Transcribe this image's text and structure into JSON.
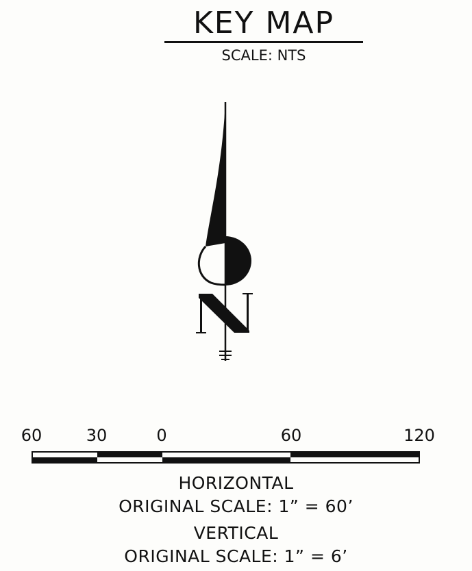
{
  "header": {
    "title": "KEY MAP",
    "subtitle": "SCALE: NTS"
  },
  "north_arrow": {
    "letter": "N",
    "icon": "north-arrow-icon"
  },
  "scale_bar": {
    "tick_labels": [
      "60",
      "30",
      "0",
      "60",
      "120"
    ],
    "units": "feet"
  },
  "scale_notes": {
    "horizontal_label": "HORIZONTAL",
    "horizontal_scale": "ORIGINAL SCALE:  1”  =  60’",
    "vertical_label": "VERTICAL",
    "vertical_scale": "ORIGINAL SCALE:  1”  =  6’"
  }
}
